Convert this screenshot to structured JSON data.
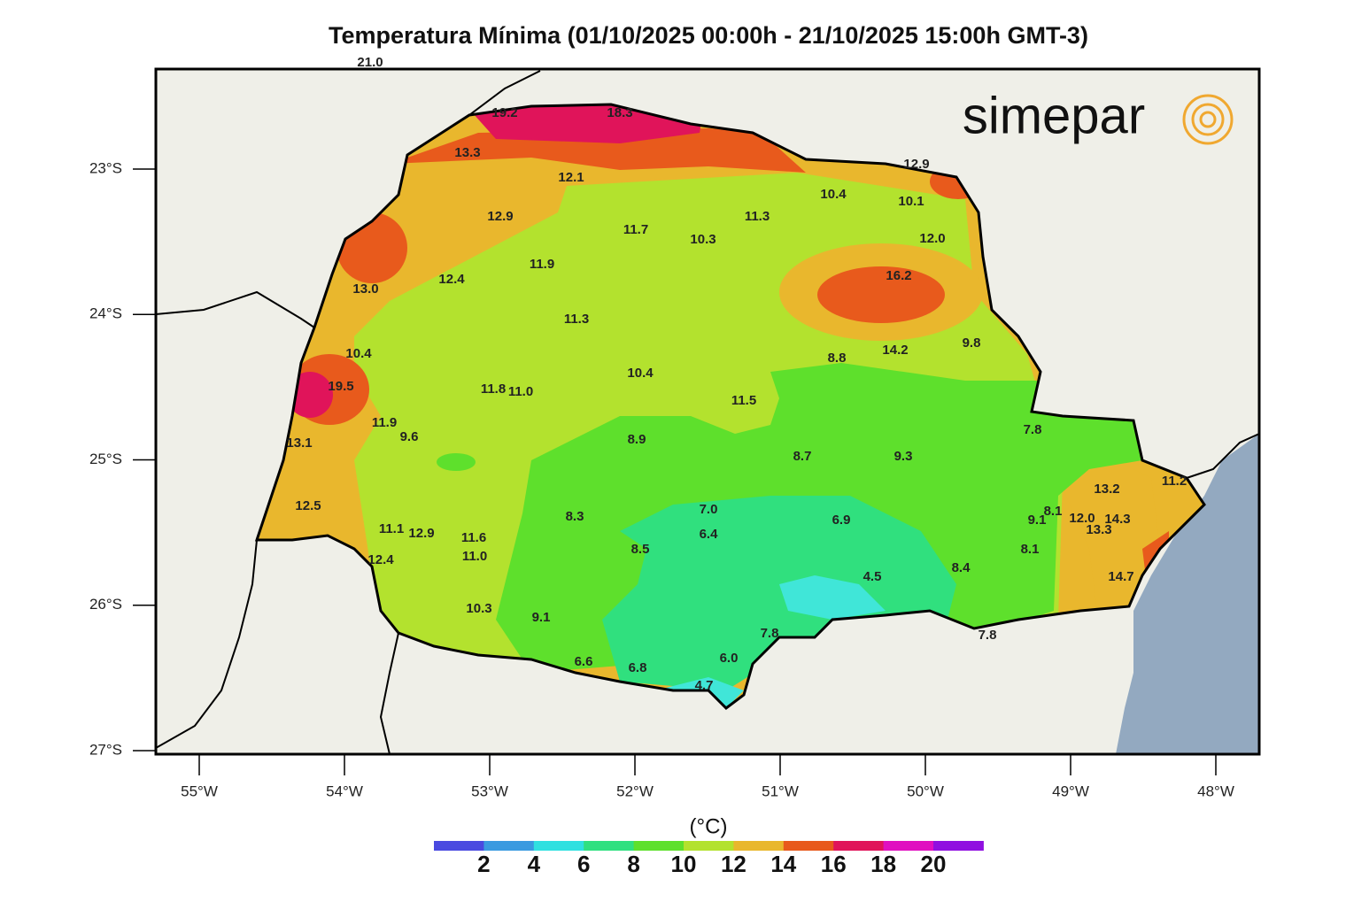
{
  "title": "Temperatura Mínima (01/10/2025 00:00h - 21/10/2025 15:00h GMT-3)",
  "logo": "simepar",
  "lat_ticks": [
    {
      "value": -23,
      "label": "23°S"
    },
    {
      "value": -24,
      "label": "24°S"
    },
    {
      "value": -25,
      "label": "25°S"
    },
    {
      "value": -26,
      "label": "26°S"
    },
    {
      "value": -27,
      "label": "27°S"
    }
  ],
  "lon_ticks": [
    {
      "value": -55,
      "label": "55°W"
    },
    {
      "value": -54,
      "label": "54°W"
    },
    {
      "value": -53,
      "label": "53°W"
    },
    {
      "value": -52,
      "label": "52°W"
    },
    {
      "value": -51,
      "label": "51°W"
    },
    {
      "value": -50,
      "label": "50°W"
    },
    {
      "value": -49,
      "label": "49°W"
    },
    {
      "value": -48,
      "label": "48°W"
    }
  ],
  "stations": [
    "21.0",
    "19.2",
    "18.3",
    "13.3",
    "12.1",
    "12.9",
    "11.7",
    "10.3",
    "11.3",
    "10.4",
    "10.1",
    "12.9",
    "12.0",
    "16.2",
    "11.9",
    "12.4",
    "13.0",
    "11.3",
    "10.4",
    "19.5",
    "11.8",
    "11.0",
    "10.4",
    "8.8",
    "14.2",
    "9.8",
    "11.5",
    "11.9",
    "9.6",
    "13.1",
    "8.9",
    "8.7",
    "9.3",
    "7.8",
    "12.5",
    "13.2",
    "11.2",
    "8.3",
    "7.0",
    "6.9",
    "6.4",
    "11.1",
    "12.9",
    "11.6",
    "11.0",
    "8.5",
    "9.1",
    "8.1",
    "12.0",
    "14.3",
    "13.3",
    "8.1",
    "12.4",
    "4.5",
    "8.4",
    "14.7",
    "10.3",
    "9.1",
    "7.8",
    "6.6",
    "6.8",
    "6.0",
    "4.7",
    "7.8"
  ],
  "colorbar": {
    "unit": "(°C)",
    "labels": [
      2,
      4,
      6,
      8,
      10,
      12,
      14,
      16,
      18,
      20
    ],
    "colors": [
      "#4a4ae0",
      "#3a9ae0",
      "#30e0e0",
      "#30e080",
      "#5ee02c",
      "#b3e22e",
      "#e9b72d",
      "#e85a1c",
      "#e0145a",
      "#e010c0",
      "#9010e0"
    ]
  }
}
